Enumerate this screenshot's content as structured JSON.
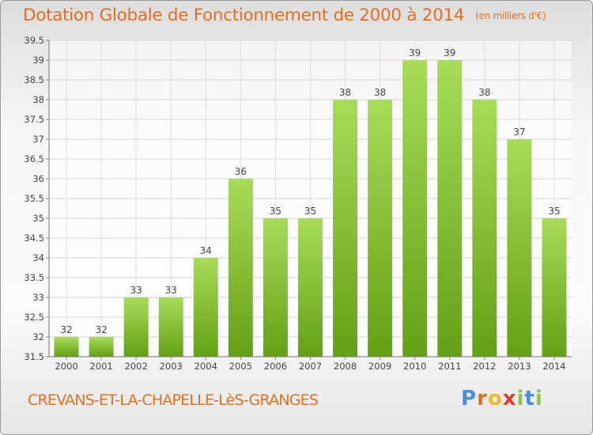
{
  "header": {
    "title": "Dotation Globale de Fonctionnement de 2000 à 2014",
    "unit": "(en milliers d'€)"
  },
  "footer": {
    "commune": "CREVANS-ET-LA-CHAPELLE-LèS-GRANGES",
    "logo": [
      "P",
      "r",
      "o",
      "x",
      "i",
      "t",
      "i"
    ]
  },
  "colors": {
    "accent": "#e07020",
    "bar_light": "#a8dc58",
    "bar_dark": "#64a015"
  },
  "chart_data": {
    "type": "bar",
    "title": "Dotation Globale de Fonctionnement de 2000 à 2014",
    "subtitle": "(en milliers d'€)",
    "xlabel": "",
    "ylabel": "",
    "categories": [
      "2000",
      "2001",
      "2002",
      "2003",
      "2004",
      "2005",
      "2006",
      "2007",
      "2008",
      "2009",
      "2010",
      "2011",
      "2012",
      "2013",
      "2014"
    ],
    "values": [
      32,
      32,
      33,
      33,
      34,
      36,
      35,
      35,
      38,
      38,
      39,
      39,
      38,
      37,
      35
    ],
    "data_labels": [
      "32",
      "32",
      "33",
      "33",
      "34",
      "36",
      "35",
      "35",
      "38",
      "38",
      "39",
      "39",
      "38",
      "37",
      "35"
    ],
    "ylim": [
      31.5,
      39.5
    ],
    "yticks": [
      "31.5",
      "32",
      "32.5",
      "33",
      "33.5",
      "34",
      "34.5",
      "35",
      "35.5",
      "36",
      "36.5",
      "37",
      "37.5",
      "38",
      "38.5",
      "39",
      "39.5"
    ],
    "grid": true
  }
}
